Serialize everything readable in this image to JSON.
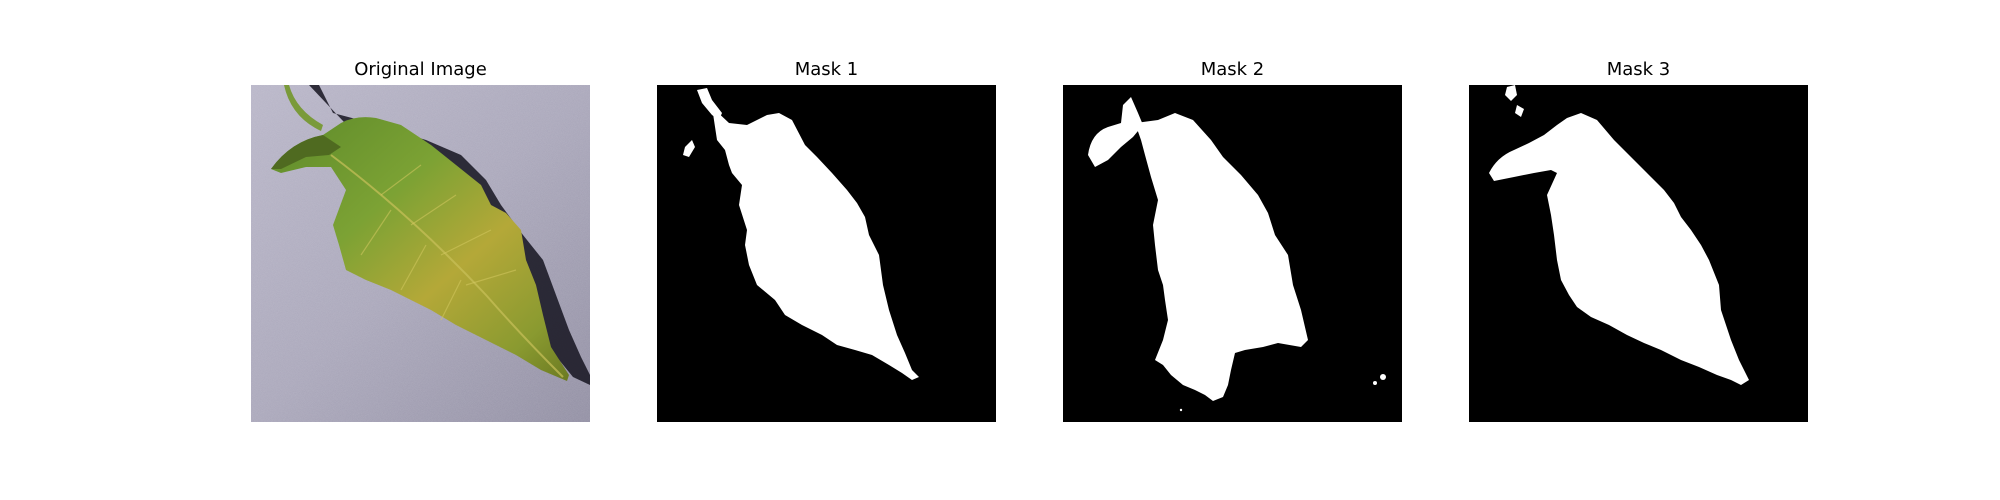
{
  "figure": {
    "panels": [
      {
        "title": "Original Image",
        "kind": "photo"
      },
      {
        "title": "Mask 1",
        "kind": "mask"
      },
      {
        "title": "Mask 2",
        "kind": "mask"
      },
      {
        "title": "Mask 3",
        "kind": "mask"
      }
    ]
  },
  "colors": {
    "mask_background": "#000000",
    "mask_foreground": "#ffffff",
    "backdrop": "#a8a5b8",
    "leaf_green": "#6f9a2e",
    "leaf_yellow": "#c8b83a",
    "shadow": "#151420"
  }
}
